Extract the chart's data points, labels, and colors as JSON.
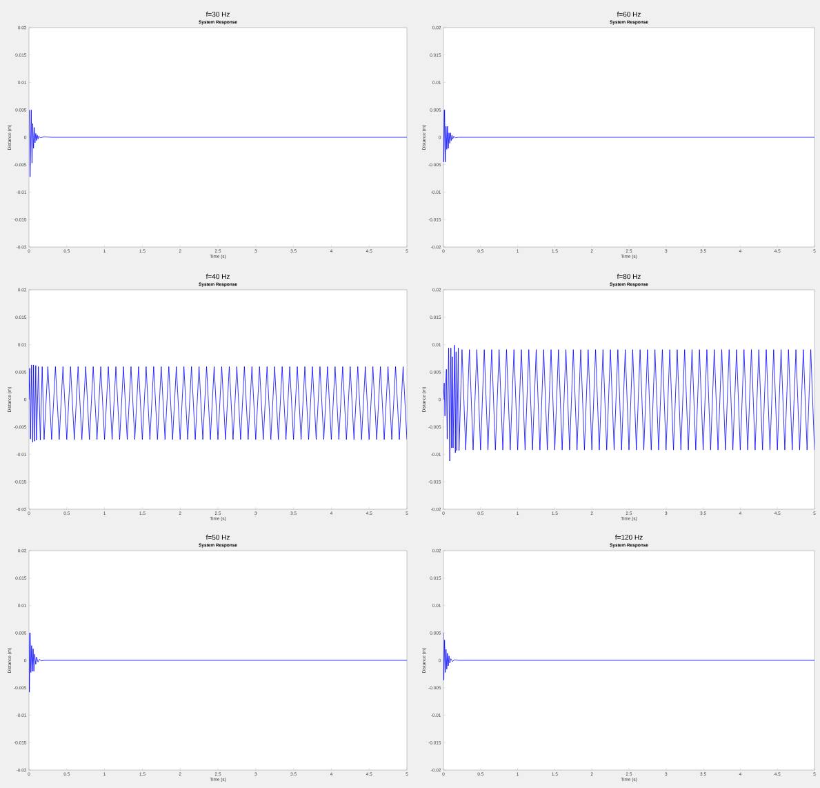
{
  "chart_data": [
    {
      "type": "line",
      "title": "f=30 Hz",
      "subtitle": "System Response",
      "xlabel": "Time (s)",
      "ylabel": "Distance (m)",
      "color": "#0000ff",
      "x": [
        0,
        0.005,
        0.015,
        0.03,
        0.04,
        0.05,
        0.06,
        0.07,
        0.08,
        0.09,
        0.1,
        0.11,
        0.12,
        0.13,
        0.15,
        0.2,
        0.3,
        5
      ],
      "values": [
        0.005,
        0.0048,
        -0.0072,
        0.005,
        -0.0047,
        0.0025,
        -0.002,
        0.0018,
        -0.001,
        0.0007,
        -0.0006,
        0.0004,
        -0.0003,
        0.0002,
        -0.0001,
        0.0001,
        0,
        0
      ],
      "xlim": [
        0,
        5
      ],
      "ylim": [
        -0.02,
        0.02
      ],
      "xticks": [
        0,
        0.5,
        1,
        1.5,
        2,
        2.5,
        3,
        3.5,
        4,
        4.5,
        5
      ],
      "yticks": [
        -0.02,
        -0.015,
        -0.01,
        -0.005,
        0,
        0.005,
        0.01,
        0.015,
        0.02
      ]
    },
    {
      "type": "line",
      "title": "f=60 Hz",
      "subtitle": "System Response",
      "xlabel": "Time (s)",
      "ylabel": "Distance (m)",
      "color": "#0000ff",
      "x": [
        0,
        0.005,
        0.015,
        0.025,
        0.035,
        0.045,
        0.055,
        0.065,
        0.075,
        0.085,
        0.095,
        0.105,
        0.115,
        0.125,
        0.14,
        0.16,
        0.2,
        5
      ],
      "values": [
        0.005,
        -0.0045,
        0.005,
        -0.0045,
        0.002,
        -0.0022,
        0.002,
        -0.002,
        0.0008,
        -0.0011,
        0.0008,
        -0.0006,
        0.0004,
        -0.0003,
        0.0002,
        -0.0001,
        0,
        0
      ],
      "xlim": [
        0,
        5
      ],
      "ylim": [
        -0.02,
        0.02
      ],
      "xticks": [
        0,
        0.5,
        1,
        1.5,
        2,
        2.5,
        3,
        3.5,
        4,
        4.5,
        5
      ],
      "yticks": [
        -0.02,
        -0.015,
        -0.01,
        -0.005,
        0,
        0.005,
        0.01,
        0.015,
        0.02
      ]
    },
    {
      "type": "line",
      "title": "f=40 Hz",
      "subtitle": "System Response",
      "xlabel": "Time (s)",
      "ylabel": "Distance (m)",
      "color": "#0000ff",
      "x": [
        0,
        0.01,
        0.02,
        0.035,
        0.05,
        0.06,
        0.075,
        0.09,
        0.1,
        0.125,
        0.15,
        0.175,
        0.2,
        0.25,
        0.3,
        0.35,
        0.4,
        0.45,
        0.5,
        0.55,
        0.6,
        0.65,
        0.7,
        0.75,
        0.8,
        0.85,
        0.9,
        0.95,
        1,
        1.05,
        1.1,
        1.15,
        1.2,
        1.25,
        1.3,
        1.35,
        1.4,
        1.45,
        1.5,
        1.55,
        1.6,
        1.65,
        1.7,
        1.75,
        1.8,
        1.85,
        1.9,
        1.95,
        2,
        2.05,
        2.1,
        2.15,
        2.2,
        2.25,
        2.3,
        2.35,
        2.4,
        2.45,
        2.5,
        2.55,
        2.6,
        2.65,
        2.7,
        2.75,
        2.8,
        2.85,
        2.9,
        2.95,
        3,
        3.05,
        3.1,
        3.15,
        3.2,
        3.25,
        3.3,
        3.35,
        3.4,
        3.45,
        3.5,
        3.55,
        3.6,
        3.65,
        3.7,
        3.75,
        3.8,
        3.85,
        3.9,
        3.95,
        4,
        4.05,
        4.1,
        4.15,
        4.2,
        4.25,
        4.3,
        4.35,
        4.4,
        4.45,
        4.5,
        4.55,
        4.6,
        4.65,
        4.7,
        4.75,
        4.8,
        4.85,
        4.9,
        4.95,
        5
      ],
      "values": [
        0,
        0.0057,
        -0.0072,
        0.0063,
        -0.0078,
        0.0063,
        -0.0076,
        0.0062,
        -0.0074,
        0.006,
        -0.0074,
        0.006,
        -0.0073,
        0.006,
        -0.0073,
        0.006,
        -0.0073,
        0.006,
        -0.0073,
        0.006,
        -0.0073,
        0.006,
        -0.0073,
        0.006,
        -0.0073,
        0.006,
        -0.0073,
        0.006,
        -0.0073,
        0.006,
        -0.0073,
        0.006,
        -0.0073,
        0.006,
        -0.0073,
        0.006,
        -0.0073,
        0.006,
        -0.0073,
        0.006,
        -0.0073,
        0.006,
        -0.0073,
        0.006,
        -0.0073,
        0.006,
        -0.0073,
        0.006,
        -0.0073,
        0.006,
        -0.0073,
        0.006,
        -0.0073,
        0.006,
        -0.0073,
        0.006,
        -0.0073,
        0.006,
        -0.0073,
        0.006,
        -0.0073,
        0.006,
        -0.0073,
        0.006,
        -0.0073,
        0.006,
        -0.0073,
        0.006,
        -0.0073,
        0.006,
        -0.0073,
        0.006,
        -0.0073,
        0.006,
        -0.0073,
        0.006,
        -0.0073,
        0.006,
        -0.0073,
        0.006,
        -0.0073,
        0.006,
        -0.0073,
        0.006,
        -0.0073,
        0.006,
        -0.0073,
        0.006,
        -0.0073,
        0.006,
        -0.0073,
        0.006,
        -0.0073,
        0.006,
        -0.0073,
        0.006,
        -0.0073,
        0.006,
        -0.0073,
        0.006,
        -0.0073,
        0.006,
        -0.0073,
        0.006,
        -0.0073,
        0.006,
        -0.0073,
        0.006,
        -0.0073
      ],
      "xlim": [
        0,
        5
      ],
      "ylim": [
        -0.02,
        0.02
      ],
      "xticks": [
        0,
        0.5,
        1,
        1.5,
        2,
        2.5,
        3,
        3.5,
        4,
        4.5,
        5
      ],
      "yticks": [
        -0.02,
        -0.015,
        -0.01,
        -0.005,
        0,
        0.005,
        0.01,
        0.015,
        0.02
      ]
    },
    {
      "type": "line",
      "title": "f=80 Hz",
      "subtitle": "System Response",
      "xlabel": "Time (s)",
      "ylabel": "Distance (m)",
      "color": "#0000ff",
      "x": [
        0,
        0.01,
        0.02,
        0.03,
        0.04,
        0.05,
        0.07,
        0.085,
        0.1,
        0.11,
        0.12,
        0.13,
        0.15,
        0.16,
        0.17,
        0.18,
        0.2,
        0.21,
        0.25,
        0.3,
        0.35,
        0.4,
        0.45,
        0.5,
        0.55,
        0.6,
        0.65,
        0.7,
        0.75,
        0.8,
        0.85,
        0.9,
        0.95,
        1,
        1.05,
        1.1,
        1.15,
        1.2,
        1.25,
        1.3,
        1.35,
        1.4,
        1.45,
        1.5,
        1.55,
        1.6,
        1.65,
        1.7,
        1.75,
        1.8,
        1.85,
        1.9,
        1.95,
        2,
        2.05,
        2.1,
        2.15,
        2.2,
        2.25,
        2.3,
        2.35,
        2.4,
        2.45,
        2.5,
        2.55,
        2.6,
        2.65,
        2.7,
        2.75,
        2.8,
        2.85,
        2.9,
        2.95,
        3,
        3.05,
        3.1,
        3.15,
        3.2,
        3.25,
        3.3,
        3.35,
        3.4,
        3.45,
        3.5,
        3.55,
        3.6,
        3.65,
        3.7,
        3.75,
        3.8,
        3.85,
        3.9,
        3.95,
        4,
        4.05,
        4.1,
        4.15,
        4.2,
        4.25,
        4.3,
        4.35,
        4.4,
        4.45,
        4.5,
        4.55,
        4.6,
        4.65,
        4.7,
        4.75,
        4.8,
        4.85,
        4.9,
        4.95,
        5
      ],
      "values": [
        0,
        0.003,
        -0.003,
        0.003,
        0.0055,
        -0.0072,
        0.0094,
        -0.0112,
        0.0094,
        -0.0088,
        0.0078,
        -0.0088,
        0.0099,
        -0.0097,
        0.0087,
        -0.0093,
        0.0094,
        -0.0093,
        0.0091,
        -0.0092,
        0.0091,
        -0.0092,
        0.0091,
        -0.0092,
        0.0091,
        -0.0092,
        0.0091,
        -0.0092,
        0.0091,
        -0.0092,
        0.0091,
        -0.0092,
        0.0091,
        -0.0092,
        0.0091,
        -0.0092,
        0.0091,
        -0.0092,
        0.0091,
        -0.0092,
        0.0091,
        -0.0092,
        0.0091,
        -0.0092,
        0.0091,
        -0.0092,
        0.0091,
        -0.0092,
        0.0091,
        -0.0092,
        0.0091,
        -0.0092,
        0.0091,
        -0.0092,
        0.0091,
        -0.0092,
        0.0091,
        -0.0092,
        0.0091,
        -0.0092,
        0.0091,
        -0.0092,
        0.0091,
        -0.0092,
        0.0091,
        -0.0092,
        0.0091,
        -0.0092,
        0.0091,
        -0.0092,
        0.0091,
        -0.0092,
        0.0091,
        -0.0092,
        0.0091,
        -0.0092,
        0.0091,
        -0.0092,
        0.0091,
        -0.0092,
        0.0091,
        -0.0092,
        0.0091,
        -0.0092,
        0.0091,
        -0.0092,
        0.0091,
        -0.0092,
        0.0091,
        -0.0092,
        0.0091,
        -0.0092,
        0.0091,
        -0.0092,
        0.0091,
        -0.0092,
        0.0091,
        -0.0092,
        0.0091,
        -0.0092,
        0.0091,
        -0.0092,
        0.0091,
        -0.0092,
        0.0091,
        -0.0092,
        0.0091,
        -0.0092,
        0.0091,
        -0.0092,
        0.0091,
        -0.0092,
        0.0091,
        -0.0092
      ],
      "xlim": [
        0,
        5
      ],
      "ylim": [
        -0.02,
        0.02
      ],
      "xticks": [
        0,
        0.5,
        1,
        1.5,
        2,
        2.5,
        3,
        3.5,
        4,
        4.5,
        5
      ],
      "yticks": [
        -0.02,
        -0.015,
        -0.01,
        -0.005,
        0,
        0.005,
        0.01,
        0.015,
        0.02
      ]
    },
    {
      "type": "line",
      "title": "f=50 Hz",
      "subtitle": "System Response",
      "xlabel": "Time (s)",
      "ylabel": "Distance (m)",
      "color": "#0000ff",
      "x": [
        0,
        0.005,
        0.015,
        0.025,
        0.035,
        0.045,
        0.055,
        0.065,
        0.075,
        0.09,
        0.1,
        0.12,
        0.14,
        0.16,
        0.2,
        5
      ],
      "values": [
        0.005,
        -0.0058,
        0.005,
        -0.0022,
        0.0027,
        -0.002,
        0.0021,
        -0.002,
        0.0011,
        -0.0007,
        0.0006,
        -0.0003,
        0.0002,
        -0.0001,
        0,
        0
      ],
      "xlim": [
        0,
        5
      ],
      "ylim": [
        -0.02,
        0.02
      ],
      "xticks": [
        0,
        0.5,
        1,
        1.5,
        2,
        2.5,
        3,
        3.5,
        4,
        4.5,
        5
      ],
      "yticks": [
        -0.02,
        -0.015,
        -0.01,
        -0.005,
        0,
        0.005,
        0.01,
        0.015,
        0.02
      ]
    },
    {
      "type": "line",
      "title": "f=120 Hz",
      "subtitle": "System Response",
      "xlabel": "Time (s)",
      "ylabel": "Distance (m)",
      "color": "#0000ff",
      "x": [
        0,
        0.005,
        0.015,
        0.025,
        0.035,
        0.045,
        0.055,
        0.065,
        0.075,
        0.085,
        0.1,
        0.12,
        0.15,
        0.2,
        5
      ],
      "values": [
        0.005,
        -0.0036,
        0.0037,
        -0.0022,
        0.002,
        -0.0016,
        0.0013,
        -0.001,
        0.0008,
        -0.0005,
        0.0003,
        -0.0002,
        0.0001,
        0,
        0
      ],
      "xlim": [
        0,
        5
      ],
      "ylim": [
        -0.02,
        0.02
      ],
      "xticks": [
        0,
        0.5,
        1,
        1.5,
        2,
        2.5,
        3,
        3.5,
        4,
        4.5,
        5
      ],
      "yticks": [
        -0.02,
        -0.015,
        -0.01,
        -0.005,
        0,
        0.005,
        0.01,
        0.015,
        0.02
      ]
    }
  ]
}
